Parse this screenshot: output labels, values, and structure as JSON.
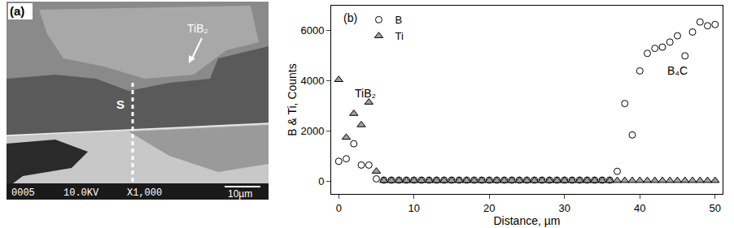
{
  "image_panel": {
    "label": "(a)",
    "phase_label": "TiB₂",
    "line_label": "S",
    "info": [
      "0005",
      "10.0KV",
      "X1,000"
    ],
    "scale_bar": "10µm"
  },
  "chart_data": {
    "type": "scatter",
    "x_label": "Distance, µm",
    "y_label": "B & Ti, Counts",
    "x": [
      0,
      1,
      2,
      3,
      4,
      5,
      6,
      7,
      8,
      9,
      10,
      11,
      12,
      13,
      14,
      15,
      16,
      17,
      18,
      19,
      20,
      21,
      22,
      23,
      24,
      25,
      26,
      27,
      28,
      29,
      30,
      31,
      32,
      33,
      34,
      35,
      36,
      37,
      38,
      39,
      40,
      41,
      42,
      43,
      44,
      45,
      46,
      47,
      48,
      49,
      50
    ],
    "series": [
      {
        "name": "B",
        "color": "#000000",
        "marker": "circle-open",
        "values": [
          800,
          900,
          1500,
          650,
          650,
          100,
          50,
          50,
          50,
          50,
          50,
          50,
          50,
          50,
          50,
          50,
          50,
          50,
          50,
          50,
          50,
          50,
          50,
          50,
          50,
          50,
          50,
          50,
          50,
          50,
          50,
          50,
          50,
          50,
          50,
          50,
          50,
          400,
          3100,
          1850,
          4400,
          5100,
          5300,
          5350,
          5550,
          5800,
          5000,
          5950,
          6350,
          6200,
          6250
        ]
      },
      {
        "name": "Ti",
        "color": "#a0a0a0",
        "marker": "triangle-up",
        "values": [
          4050,
          1750,
          2700,
          2250,
          3150,
          400,
          30,
          30,
          30,
          30,
          30,
          30,
          30,
          30,
          30,
          30,
          30,
          30,
          30,
          30,
          30,
          30,
          30,
          30,
          30,
          30,
          30,
          30,
          30,
          30,
          30,
          30,
          30,
          30,
          30,
          30,
          30,
          30,
          30,
          30,
          30,
          30,
          30,
          30,
          30,
          30,
          30,
          30,
          30,
          30,
          30
        ]
      }
    ],
    "xlim": [
      -1,
      51
    ],
    "xticks": [
      0,
      10,
      20,
      30,
      40,
      50
    ],
    "ylim": [
      -500,
      7000
    ],
    "yticks": [
      0,
      2000,
      4000,
      6000
    ],
    "grid": false,
    "legend": "top left",
    "annotations": [
      {
        "text": "(b)",
        "x": 1.5,
        "y": 6500
      },
      {
        "text": "TiB₂",
        "x": 3.5,
        "y": 3500
      },
      {
        "text": "B₄C",
        "x": 45,
        "y": 4400
      }
    ]
  }
}
